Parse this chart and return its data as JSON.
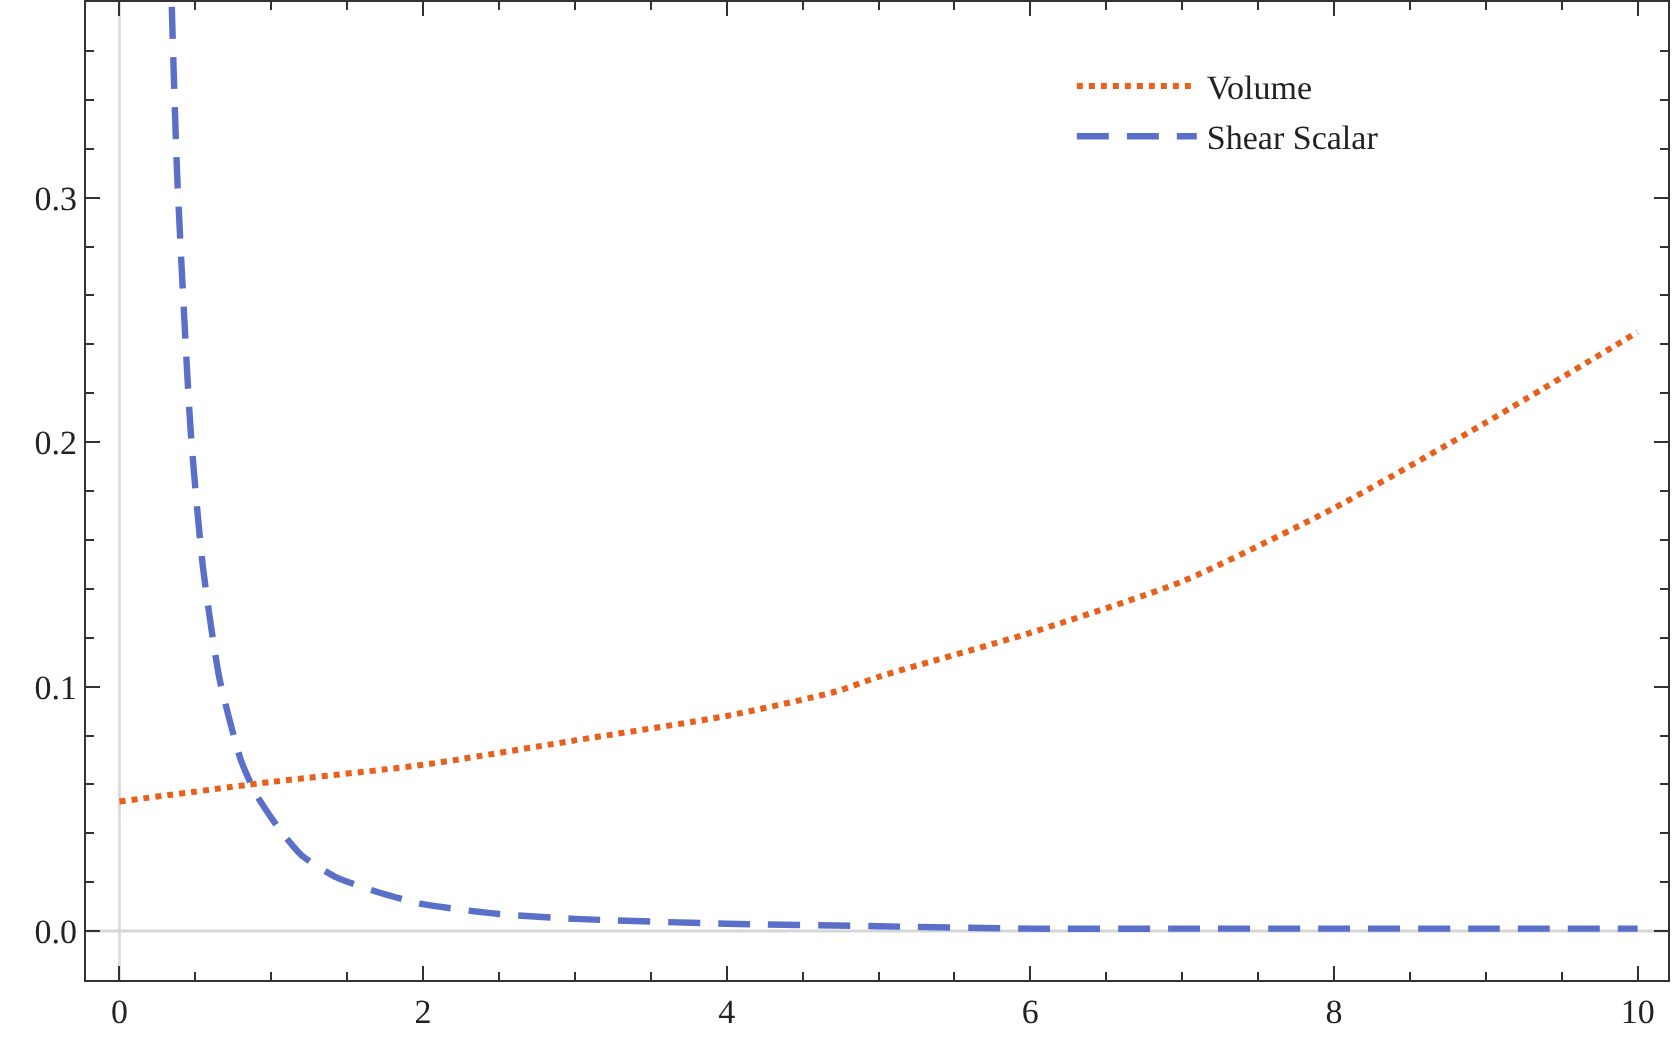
{
  "chart_data": {
    "type": "line",
    "xlim": [
      -0.22,
      10.2
    ],
    "ylim": [
      -0.02,
      0.38
    ],
    "xticks": [
      0,
      2,
      4,
      6,
      8,
      10
    ],
    "yticks": [
      {
        "value": 0,
        "label": "0.0"
      },
      0.1,
      0.2,
      0.3
    ],
    "grid": false,
    "legend": "top right",
    "marker": "none",
    "ref_lines": [
      {
        "axis": "x",
        "value": 0,
        "color": "#dddddd"
      },
      {
        "axis": "y",
        "value": 0,
        "color": "#d6d6d6"
      }
    ],
    "series": [
      {
        "name": "Volume",
        "color": "#e8601c",
        "line_style": "dotted",
        "x": [
          0,
          1,
          2,
          3,
          4,
          4.72,
          5,
          6,
          7,
          8,
          9,
          10
        ],
        "values": [
          0.053,
          0.061,
          0.068,
          0.078,
          0.088,
          0.098,
          0.104,
          0.122,
          0.143,
          0.173,
          0.208,
          0.245
        ]
      },
      {
        "name": "Shear Scalar",
        "color": "#5a6fc8",
        "line_style": "dashed",
        "x": [
          0.345,
          0.38,
          0.47,
          0.55,
          0.66,
          0.8,
          0.9,
          1.05,
          1.2,
          1.43,
          1.7,
          2,
          2.5,
          3,
          4,
          5,
          6,
          7,
          8,
          9,
          10
        ],
        "values": [
          0.378,
          0.31,
          0.204,
          0.149,
          0.103,
          0.07,
          0.056,
          0.042,
          0.031,
          0.022,
          0.016,
          0.011,
          0.007,
          0.005,
          0.003,
          0.002,
          0.001,
          0.001,
          0.001,
          0.001,
          0.001
        ]
      }
    ]
  }
}
